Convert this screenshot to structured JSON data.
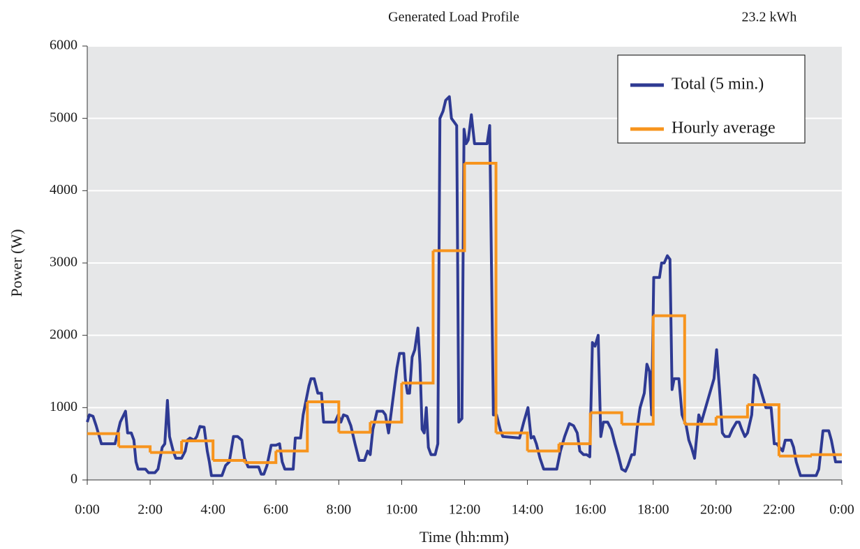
{
  "chart_data": {
    "type": "line",
    "title": "Generated Load Profile",
    "annotation": "23.2 kWh",
    "x_label": "Time (hh:mm)",
    "y_label": "Power (W)",
    "xlim": [
      0,
      1440
    ],
    "ylim": [
      0,
      6000
    ],
    "xticks": [
      {
        "value": 0,
        "label": "0:00"
      },
      {
        "value": 120,
        "label": "2:00"
      },
      {
        "value": 240,
        "label": "4:00"
      },
      {
        "value": 360,
        "label": "6:00"
      },
      {
        "value": 480,
        "label": "8:00"
      },
      {
        "value": 600,
        "label": "10:00"
      },
      {
        "value": 720,
        "label": "12:00"
      },
      {
        "value": 840,
        "label": "14:00"
      },
      {
        "value": 960,
        "label": "16:00"
      },
      {
        "value": 1080,
        "label": "18:00"
      },
      {
        "value": 1200,
        "label": "20:00"
      },
      {
        "value": 1320,
        "label": "22:00"
      },
      {
        "value": 1440,
        "label": "0:00"
      }
    ],
    "yticks": [
      0,
      1000,
      2000,
      3000,
      4000,
      5000,
      6000
    ],
    "grid": true,
    "legend": "upper right",
    "background": "#e6e7e8",
    "series": [
      {
        "name": "Total (5 min.)",
        "color": "#2e3a93",
        "step": false,
        "x": [
          0,
          4,
          11,
          17,
          27,
          53,
          63,
          73,
          77,
          84,
          89,
          93,
          97,
          111,
          117,
          129,
          135,
          143,
          148,
          153,
          157,
          164,
          169,
          180,
          187,
          191,
          196,
          204,
          209,
          215,
          223,
          229,
          233,
          237,
          257,
          264,
          271,
          279,
          287,
          295,
          300,
          307,
          327,
          332,
          337,
          343,
          351,
          360,
          367,
          372,
          377,
          393,
          397,
          407,
          412,
          423,
          427,
          433,
          440,
          447,
          451,
          473,
          479,
          484,
          489,
          496,
          503,
          511,
          519,
          529,
          535,
          540,
          545,
          553,
          564,
          569,
          575,
          583,
          591,
          596,
          604,
          607,
          611,
          615,
          620,
          625,
          631,
          635,
          639,
          643,
          647,
          651,
          656,
          664,
          669,
          673,
          679,
          684,
          691,
          695,
          700,
          705,
          709,
          715,
          719,
          723,
          727,
          733,
          739,
          763,
          768,
          775,
          781,
          788,
          793,
          825,
          833,
          841,
          847,
          852,
          857,
          864,
          871,
          896,
          903,
          911,
          920,
          928,
          935,
          940,
          947,
          953,
          959,
          964,
          969,
          975,
          980,
          985,
          993,
          1000,
          1007,
          1013,
          1020,
          1027,
          1032,
          1039,
          1044,
          1049,
          1055,
          1063,
          1068,
          1073,
          1077,
          1081,
          1092,
          1096,
          1101,
          1107,
          1112,
          1116,
          1120,
          1129,
          1135,
          1143,
          1148,
          1153,
          1159,
          1167,
          1172,
          1180,
          1188,
          1196,
          1201,
          1207,
          1212,
          1217,
          1225,
          1231,
          1239,
          1244,
          1249,
          1255,
          1260,
          1268,
          1273,
          1279,
          1287,
          1295,
          1305,
          1311,
          1316,
          1321,
          1327,
          1332,
          1343,
          1348,
          1353,
          1361,
          1391,
          1396,
          1404,
          1415,
          1420,
          1428,
          1440
        ],
        "values": [
          800,
          900,
          880,
          750,
          500,
          500,
          800,
          950,
          650,
          650,
          550,
          250,
          150,
          150,
          100,
          100,
          150,
          450,
          500,
          1100,
          600,
          400,
          300,
          300,
          400,
          550,
          580,
          550,
          600,
          740,
          730,
          400,
          250,
          60,
          60,
          200,
          250,
          600,
          600,
          550,
          300,
          180,
          180,
          80,
          80,
          200,
          480,
          480,
          500,
          250,
          150,
          150,
          580,
          580,
          900,
          1300,
          1400,
          1400,
          1200,
          1200,
          800,
          800,
          900,
          800,
          900,
          880,
          750,
          500,
          270,
          270,
          400,
          350,
          700,
          950,
          950,
          900,
          650,
          1100,
          1550,
          1750,
          1750,
          1400,
          1200,
          1200,
          1700,
          1800,
          2100,
          1600,
          700,
          650,
          1000,
          450,
          350,
          350,
          500,
          5000,
          5100,
          5250,
          5300,
          5000,
          4950,
          4900,
          800,
          850,
          4850,
          4650,
          4700,
          5050,
          4650,
          4650,
          4900,
          900,
          900,
          700,
          600,
          580,
          800,
          1000,
          580,
          600,
          500,
          300,
          150,
          150,
          400,
          600,
          780,
          750,
          650,
          400,
          350,
          350,
          320,
          1900,
          1850,
          2000,
          600,
          800,
          800,
          700,
          500,
          350,
          150,
          120,
          200,
          350,
          350,
          700,
          1000,
          1200,
          1600,
          1500,
          900,
          2800,
          2800,
          3000,
          3000,
          3100,
          3050,
          1250,
          1400,
          1400,
          900,
          750,
          550,
          450,
          300,
          900,
          800,
          1000,
          1200,
          1400,
          1800,
          1200,
          650,
          600,
          600,
          700,
          800,
          800,
          700,
          600,
          650,
          900,
          1450,
          1400,
          1200,
          1000,
          1000,
          500,
          500,
          450,
          400,
          550,
          550,
          450,
          250,
          60,
          60,
          150,
          680,
          680,
          550,
          250,
          250
        ]
      },
      {
        "name": "Hourly average",
        "color": "#f7941d",
        "step": true,
        "x": [
          0,
          60,
          120,
          180,
          240,
          300,
          360,
          420,
          480,
          540,
          600,
          660,
          720,
          780,
          840,
          900,
          960,
          1020,
          1080,
          1140,
          1200,
          1260,
          1320,
          1380
        ],
        "values": [
          640,
          460,
          380,
          540,
          270,
          240,
          400,
          1080,
          660,
          800,
          1340,
          3170,
          4380,
          650,
          400,
          500,
          930,
          770,
          2270,
          770,
          870,
          1040,
          330,
          350
        ]
      }
    ]
  }
}
